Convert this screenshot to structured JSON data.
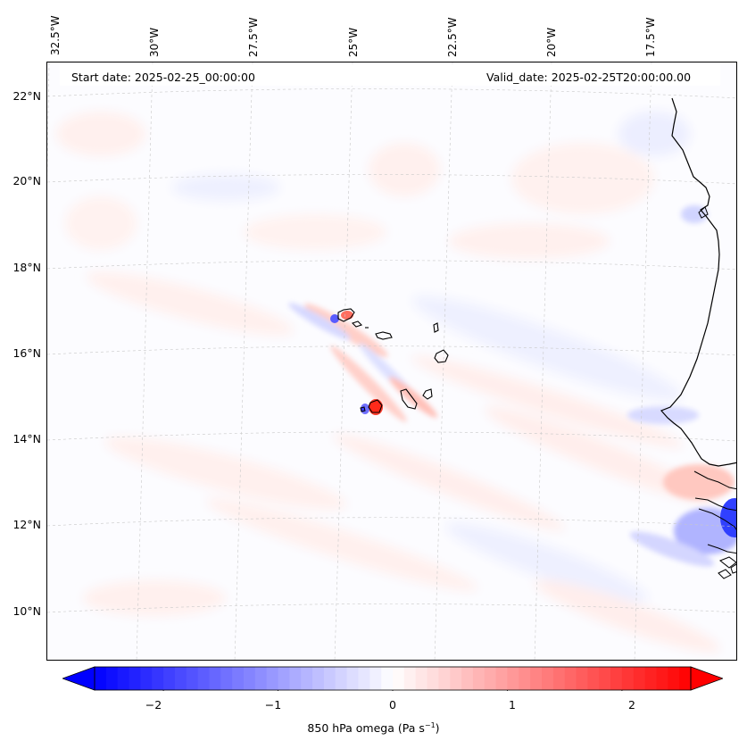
{
  "header": {
    "start_date": "Start date: 2025-02-25_00:00:00",
    "valid_date": "Valid_date: 2025-02-25T20:00:00.00"
  },
  "axes": {
    "lon_ticks": [
      "32.5°W",
      "30°W",
      "27.5°W",
      "25°W",
      "22.5°W",
      "20°W",
      "17.5°W"
    ],
    "lat_ticks": [
      "22°N",
      "20°N",
      "18°N",
      "16°N",
      "14°N",
      "12°N",
      "10°N"
    ]
  },
  "colorbar": {
    "label_text": "850 hPa omega (Pa s",
    "label_exp": "−1",
    "label_close": ")",
    "ticks": [
      "−2",
      "−1",
      "0",
      "1",
      "2"
    ],
    "tick_values": [
      -2,
      -1,
      0,
      1,
      2
    ],
    "range": [
      -2.6,
      2.6
    ],
    "colormap": "bwr",
    "low_color": "#0000ff",
    "mid_color": "#ffffff",
    "high_color": "#ff0000",
    "extend": "both"
  },
  "map": {
    "projection": "lambert-conformal",
    "lon_range": [
      -33,
      -15.5
    ],
    "lat_range": [
      9,
      22.7
    ],
    "field": "850 hPa omega",
    "units": "Pa s-1",
    "coast_color": "#000000",
    "grid_color": "#c8c8c8"
  }
}
